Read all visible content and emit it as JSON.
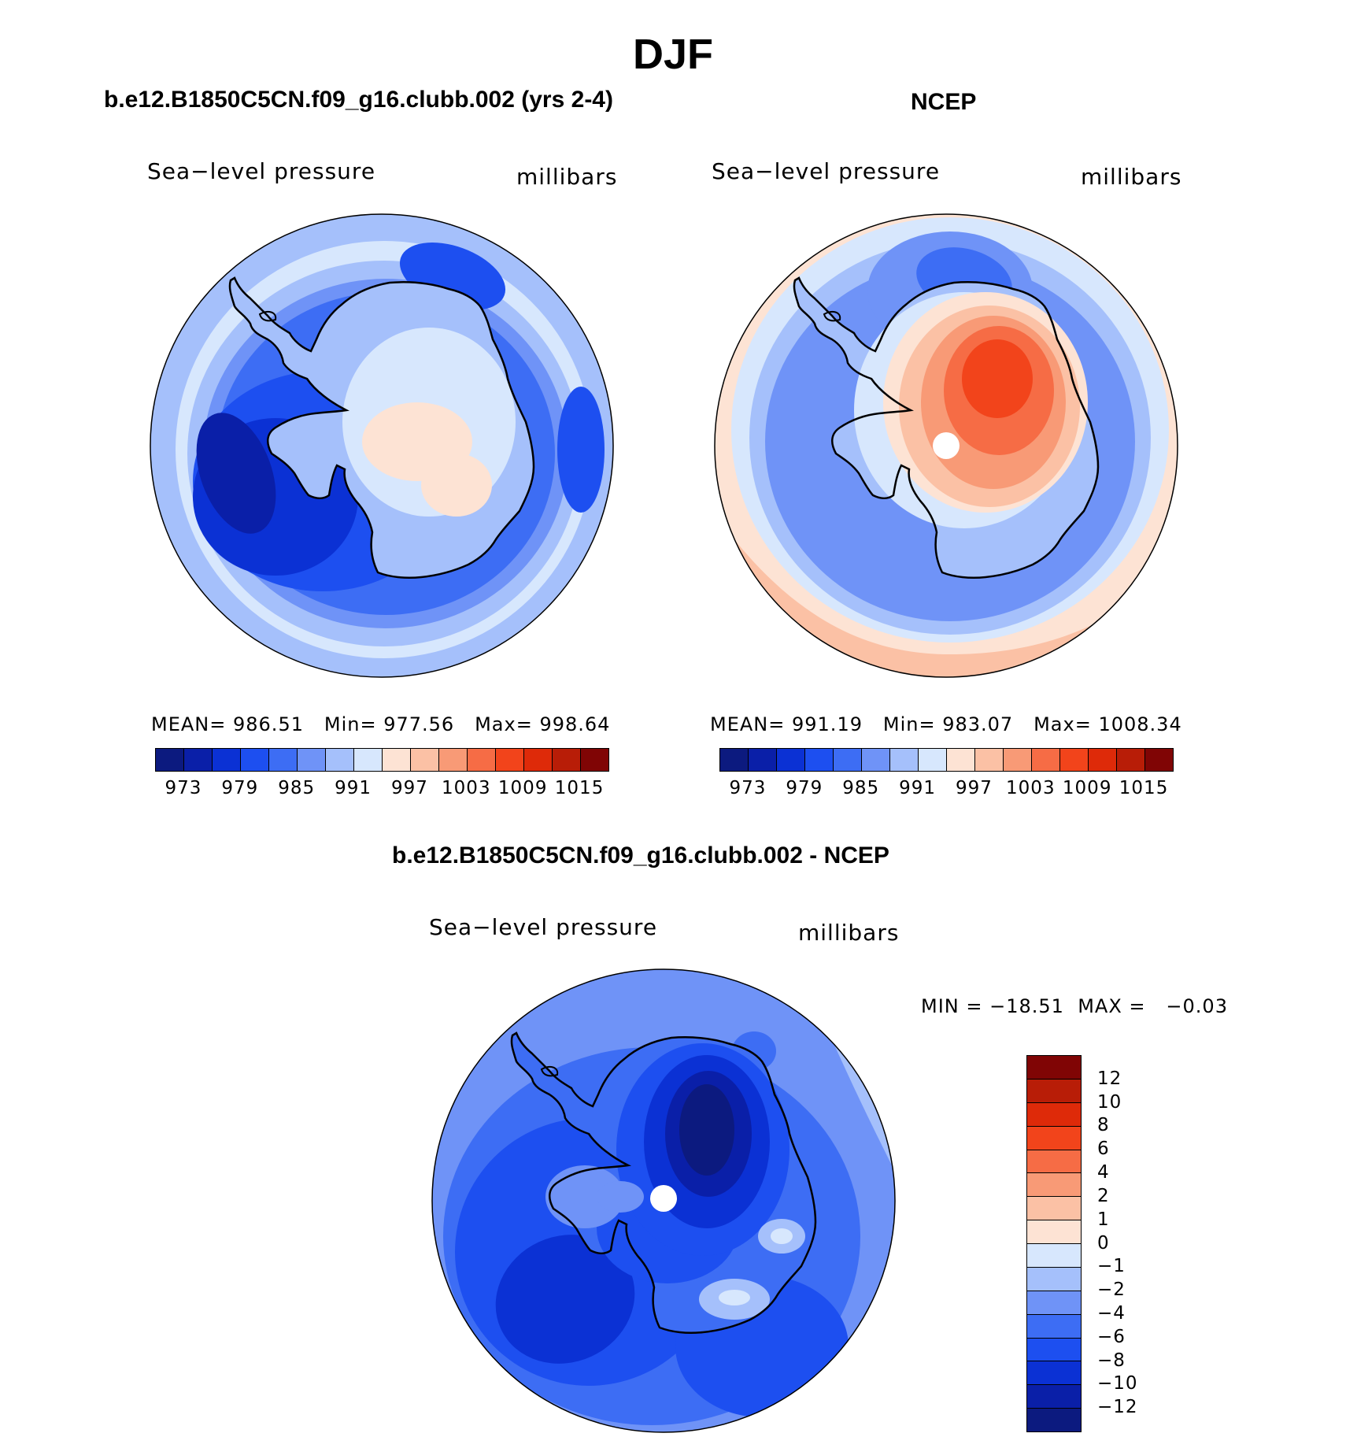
{
  "figure": {
    "title": "DJF"
  },
  "panels": {
    "model": {
      "case_title": "b.e12.B1850C5CN.f09_g16.clubb.002 (yrs 2-4)",
      "left_label": "Sea−level pressure",
      "right_label": "millibars",
      "stats": {
        "mean_label": "MEAN=",
        "mean": "986.51",
        "min_label": "Min=",
        "min": "977.56",
        "max_label": "Max=",
        "max": "998.64"
      }
    },
    "obs": {
      "case_title": "NCEP",
      "left_label": "Sea−level pressure",
      "right_label": "millibars",
      "stats": {
        "mean_label": "MEAN=",
        "mean": "991.19",
        "min_label": "Min=",
        "min": "983.07",
        "max_label": "Max=",
        "max": "1008.34"
      }
    },
    "diff": {
      "case_title": "b.e12.B1850C5CN.f09_g16.clubb.002 - NCEP",
      "left_label": "Sea−level pressure",
      "right_label": "millibars",
      "stats": {
        "min_label": "MIN =",
        "min": "−18.51",
        "max_label": "MAX =",
        "max": "−0.03"
      }
    }
  },
  "colorbars": {
    "abs": {
      "colors": [
        "#0c1a7f",
        "#0a1fa8",
        "#0b31d4",
        "#1d4ff0",
        "#3d6df4",
        "#6f93f7",
        "#a5c0fb",
        "#d7e7fd",
        "#fde3d4",
        "#fbc1a5",
        "#f89a76",
        "#f66c45",
        "#f2441b",
        "#de2a09",
        "#b81d07",
        "#800505"
      ],
      "tick_labels": [
        "973",
        "979",
        "985",
        "991",
        "997",
        "1003",
        "1009",
        "1015"
      ]
    },
    "diff": {
      "colors": [
        "#800505",
        "#b81d07",
        "#de2a09",
        "#f2441b",
        "#f66c45",
        "#f89a76",
        "#fbc1a5",
        "#fde3d4",
        "#d7e7fd",
        "#a5c0fb",
        "#6f93f7",
        "#3d6df4",
        "#1d4ff0",
        "#0b31d4",
        "#0a1fa8",
        "#0c1a7f"
      ],
      "tick_labels": [
        "12",
        "10",
        "8",
        "6",
        "4",
        "2",
        "1",
        "0",
        "−1",
        "−2",
        "−4",
        "−6",
        "−8",
        "−10",
        "−12"
      ]
    }
  },
  "chart_data": [
    {
      "type": "heatmap",
      "title": "b.e12.B1850C5CN.f09_g16.clubb.002 (yrs 2-4)",
      "variable": "Sea−level pressure",
      "units": "millibars",
      "projection": "south polar stereographic",
      "season": "DJF",
      "mean": 986.51,
      "min": 977.56,
      "max": 998.64,
      "contour_levels": [
        970,
        973,
        976,
        979,
        982,
        985,
        988,
        991,
        994,
        997,
        1000,
        1003,
        1006,
        1009,
        1012,
        1015
      ]
    },
    {
      "type": "heatmap",
      "title": "NCEP",
      "variable": "Sea−level pressure",
      "units": "millibars",
      "projection": "south polar stereographic",
      "season": "DJF",
      "mean": 991.19,
      "min": 983.07,
      "max": 1008.34,
      "contour_levels": [
        970,
        973,
        976,
        979,
        982,
        985,
        988,
        991,
        994,
        997,
        1000,
        1003,
        1006,
        1009,
        1012,
        1015
      ]
    },
    {
      "type": "heatmap",
      "title": "b.e12.B1850C5CN.f09_g16.clubb.002 - NCEP",
      "variable": "Sea−level pressure",
      "units": "millibars",
      "projection": "south polar stereographic",
      "season": "DJF",
      "min": -18.51,
      "max": -0.03,
      "contour_levels": [
        -12,
        -10,
        -8,
        -6,
        -4,
        -2,
        -1,
        0,
        1,
        2,
        4,
        6,
        8,
        10,
        12
      ]
    }
  ]
}
